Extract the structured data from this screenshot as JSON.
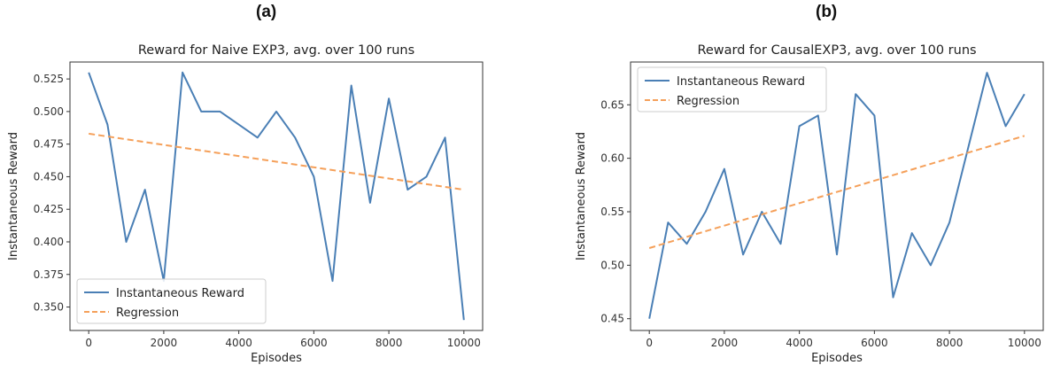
{
  "panels": [
    {
      "label": "(a)"
    },
    {
      "label": "(b)"
    }
  ],
  "colors": {
    "reward": "#4a7fb5",
    "regression": "#f5a05a"
  },
  "chart_data": [
    {
      "type": "line",
      "title": "Reward for Naive EXP3, avg. over 100 runs",
      "xlabel": "Episodes",
      "ylabel": "Instantaneous Reward",
      "xlim": [
        -500,
        10500
      ],
      "ylim": [
        0.332,
        0.538
      ],
      "xticks": [
        0,
        2000,
        4000,
        6000,
        8000,
        10000
      ],
      "yticks": [
        0.35,
        0.375,
        0.4,
        0.425,
        0.45,
        0.475,
        0.5,
        0.525
      ],
      "ytick_labels": [
        "0.350",
        "0.375",
        "0.400",
        "0.425",
        "0.450",
        "0.475",
        "0.500",
        "0.525"
      ],
      "legend_position": "lower-left",
      "series": [
        {
          "name": "Instantaneous Reward",
          "style": "solid",
          "x": [
            0,
            500,
            1000,
            1500,
            2000,
            2500,
            3000,
            3500,
            4000,
            4500,
            5000,
            5500,
            6000,
            6500,
            7000,
            7500,
            8000,
            8500,
            9000,
            9500,
            10000
          ],
          "y": [
            0.53,
            0.49,
            0.4,
            0.44,
            0.37,
            0.53,
            0.5,
            0.5,
            0.49,
            0.48,
            0.5,
            0.48,
            0.45,
            0.37,
            0.52,
            0.43,
            0.51,
            0.44,
            0.45,
            0.48,
            0.34
          ]
        },
        {
          "name": "Regression",
          "style": "dashed",
          "x": [
            0,
            10000
          ],
          "y": [
            0.483,
            0.44
          ]
        }
      ]
    },
    {
      "type": "line",
      "title": "Reward for CausalEXP3, avg. over 100 runs",
      "xlabel": "Episodes",
      "ylabel": "Instantaneous Reward",
      "xlim": [
        -500,
        10500
      ],
      "ylim": [
        0.439,
        0.69
      ],
      "xticks": [
        0,
        2000,
        4000,
        6000,
        8000,
        10000
      ],
      "yticks": [
        0.45,
        0.5,
        0.55,
        0.6,
        0.65
      ],
      "ytick_labels": [
        "0.45",
        "0.50",
        "0.55",
        "0.60",
        "0.65"
      ],
      "legend_position": "upper-left",
      "series": [
        {
          "name": "Instantaneous Reward",
          "style": "solid",
          "x": [
            0,
            500,
            1000,
            1500,
            2000,
            2500,
            3000,
            3500,
            4000,
            4500,
            5000,
            5500,
            6000,
            6500,
            7000,
            7500,
            8000,
            8500,
            9000,
            9500,
            10000
          ],
          "y": [
            0.45,
            0.54,
            0.52,
            0.55,
            0.59,
            0.51,
            0.55,
            0.52,
            0.63,
            0.64,
            0.51,
            0.66,
            0.64,
            0.47,
            0.53,
            0.5,
            0.54,
            0.61,
            0.68,
            0.63,
            0.66
          ]
        },
        {
          "name": "Regression",
          "style": "dashed",
          "x": [
            0,
            10000
          ],
          "y": [
            0.516,
            0.621
          ]
        }
      ]
    }
  ]
}
